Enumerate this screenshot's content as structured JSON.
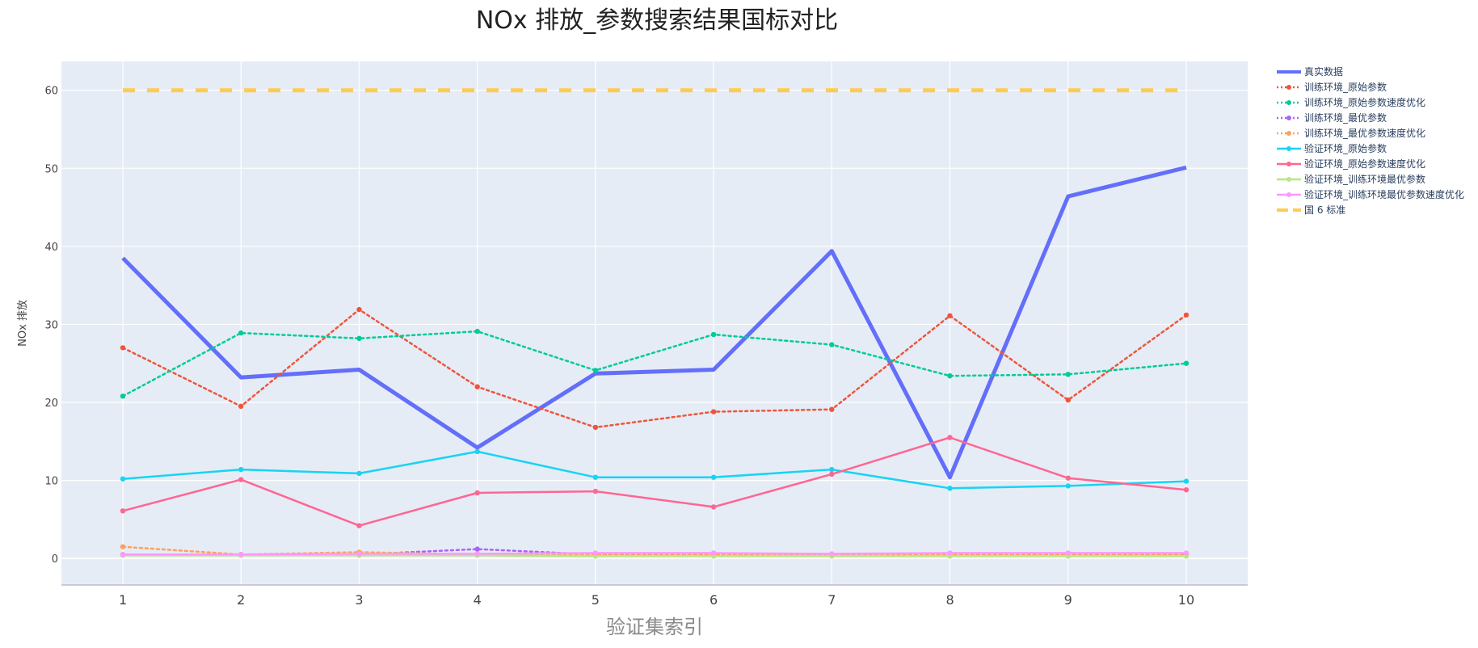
{
  "chart_data": {
    "type": "line",
    "title": "NOx 排放_参数搜索结果国标对比",
    "xlabel": "验证集索引",
    "ylabel": "NOx 排放",
    "x": [
      1,
      2,
      3,
      4,
      5,
      6,
      7,
      8,
      9,
      10
    ],
    "xlim": [
      0.48,
      10.52
    ],
    "ylim": [
      -3.4,
      63.7
    ],
    "yticks": [
      0,
      10,
      20,
      30,
      40,
      50,
      60
    ],
    "grid": true,
    "legend_position": "right",
    "plot_background": "#e5ecf6",
    "series": [
      {
        "name": "真实数据",
        "color": "#636efa",
        "dash": "solid",
        "width": 5,
        "markers": false,
        "values": [
          38.5,
          23.2,
          24.2,
          14.2,
          23.7,
          24.2,
          39.4,
          10.4,
          46.4,
          50.1
        ]
      },
      {
        "name": "训练环境_原始参数",
        "color": "#ef553b",
        "dash": "dot",
        "width": 2.5,
        "markers": true,
        "values": [
          27.0,
          19.5,
          31.9,
          22.0,
          16.8,
          18.8,
          19.1,
          31.1,
          20.3,
          31.2
        ]
      },
      {
        "name": "训练环境_原始参数速度优化",
        "color": "#00cc96",
        "dash": "dot",
        "width": 2.5,
        "markers": true,
        "values": [
          20.8,
          28.9,
          28.2,
          29.1,
          24.1,
          28.7,
          27.4,
          23.4,
          23.6,
          25.0
        ]
      },
      {
        "name": "训练环境_最优参数",
        "color": "#ab63fa",
        "dash": "dot",
        "width": 2.5,
        "markers": true,
        "values": [
          0.5,
          0.5,
          0.5,
          1.2,
          0.5,
          0.5,
          0.5,
          0.5,
          0.5,
          0.5
        ]
      },
      {
        "name": "训练环境_最优参数速度优化",
        "color": "#ffa15a",
        "dash": "dot",
        "width": 2.5,
        "markers": true,
        "values": [
          1.5,
          0.5,
          0.8,
          0.5,
          0.5,
          0.5,
          0.5,
          0.5,
          0.5,
          0.5
        ]
      },
      {
        "name": "验证环境_原始参数",
        "color": "#19d3f3",
        "dash": "solid",
        "width": 2.5,
        "markers": true,
        "values": [
          10.2,
          11.4,
          10.9,
          13.7,
          10.4,
          10.4,
          11.4,
          9.0,
          9.3,
          9.9
        ]
      },
      {
        "name": "验证环境_原始参数速度优化",
        "color": "#ff6692",
        "dash": "solid",
        "width": 2.5,
        "markers": true,
        "values": [
          6.1,
          10.1,
          4.2,
          8.4,
          8.6,
          6.6,
          10.8,
          15.5,
          10.3,
          8.8
        ]
      },
      {
        "name": "验证环境_训练环境最优参数",
        "color": "#b6e880",
        "dash": "solid",
        "width": 2.5,
        "markers": true,
        "values": [
          0.4,
          0.4,
          0.4,
          0.4,
          0.3,
          0.3,
          0.3,
          0.3,
          0.3,
          0.3
        ]
      },
      {
        "name": "验证环境_训练环境最优参数速度优化",
        "color": "#ff97ff",
        "dash": "solid",
        "width": 2.5,
        "markers": true,
        "values": [
          0.5,
          0.5,
          0.6,
          0.6,
          0.7,
          0.7,
          0.6,
          0.7,
          0.7,
          0.7
        ]
      },
      {
        "name": "国 6 标准",
        "color": "#fecb52",
        "dash": "dash",
        "width": 5,
        "markers": false,
        "values": [
          60,
          60,
          60,
          60,
          60,
          60,
          60,
          60,
          60,
          60
        ]
      }
    ]
  }
}
